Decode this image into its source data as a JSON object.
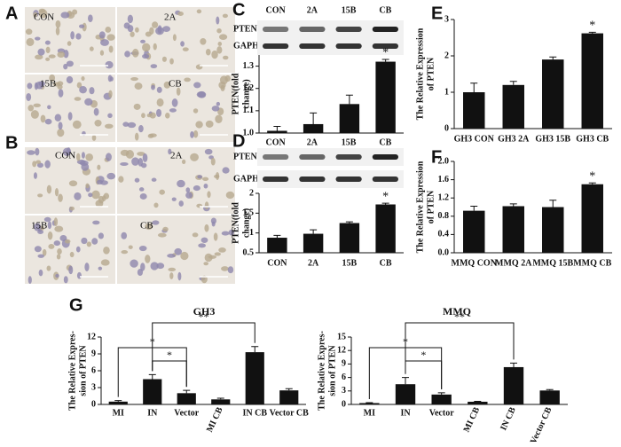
{
  "panels": [
    {
      "letter": "A",
      "labels": [
        "CON",
        "2A",
        "15B",
        "CB"
      ]
    },
    {
      "letter": "B",
      "labels": [
        "CON",
        "2A",
        "15B",
        "CB"
      ]
    },
    {
      "letter": "C"
    },
    {
      "letter": "D"
    },
    {
      "letter": "E"
    },
    {
      "letter": "F"
    },
    {
      "letter": "G"
    }
  ],
  "blots": [
    {
      "lanes": [
        "CON",
        "2A",
        "15B",
        "CB"
      ],
      "rows": [
        "PTEN",
        "GAPHD"
      ]
    },
    {
      "lanes": [
        "CON",
        "2A",
        "15B",
        "CB"
      ],
      "rows": [
        "PTEN",
        "GAPHD"
      ]
    }
  ],
  "chart_data": [
    {
      "type": "bar",
      "ylabel_lines": [
        "PTEN(fold",
        "change)"
      ],
      "categories": [
        "CON",
        "2A",
        "15B",
        "CB"
      ],
      "values": [
        1.01,
        1.04,
        1.13,
        1.32
      ],
      "errors": [
        0.02,
        0.05,
        0.04,
        0.01
      ],
      "color": "#111111",
      "ylim": [
        1.0,
        1.35
      ],
      "yticks": [
        {
          "value": 1.0,
          "label": "1.0"
        },
        1.1,
        1.2,
        1.3
      ],
      "annotations": [
        {
          "label": "*",
          "category": "CB"
        }
      ]
    },
    {
      "type": "bar",
      "ylabel_lines": [
        "PTEN(fold",
        "change)"
      ],
      "categories": [
        "CON",
        "2A",
        "15B",
        "CB"
      ],
      "values": [
        0.88,
        0.98,
        1.25,
        1.72
      ],
      "errors": [
        0.06,
        0.1,
        0.03,
        0.03
      ],
      "color": "#111111",
      "ylim": [
        0.5,
        2
      ],
      "yticks": [
        0.5,
        1,
        1.5,
        2
      ],
      "annotations": [
        {
          "label": "*",
          "category": "CB"
        }
      ]
    },
    {
      "type": "bar",
      "ylabel_lines": [
        "The Relative Expression",
        "of PTEN"
      ],
      "categories": [
        "GH3 CON",
        "GH3 2A",
        "GH3 15B",
        "GH3 CB"
      ],
      "values": [
        1.0,
        1.2,
        1.9,
        2.62
      ],
      "errors": [
        0.25,
        0.1,
        0.07,
        0.03
      ],
      "color": "#111111",
      "ylim": [
        0,
        3
      ],
      "yticks": [
        0,
        1,
        2,
        3
      ],
      "annotations": [
        {
          "label": "*",
          "category": "GH3 CB"
        }
      ]
    },
    {
      "type": "bar",
      "ylabel_lines": [
        "The Relative Expression",
        "of PTEN"
      ],
      "categories": [
        "MMQ CON",
        "MMQ 2A",
        "MMQ 15B",
        "MMQ CB"
      ],
      "values": [
        0.92,
        1.02,
        1.0,
        1.5
      ],
      "errors": [
        0.1,
        0.05,
        0.15,
        0.03
      ],
      "color": "#111111",
      "ylim": [
        0,
        2
      ],
      "yticks": [
        {
          "value": 0,
          "label": "0.0"
        },
        0.4,
        0.8,
        1.2,
        1.6,
        {
          "value": 2,
          "label": "2.0"
        }
      ],
      "annotations": [
        {
          "label": "*",
          "category": "MMQ CB"
        }
      ]
    },
    {
      "type": "bar",
      "title": "GH3",
      "ylabel_lines": [
        "The Relative Expres-",
        "sion of PTEN"
      ],
      "categories": [
        "MI",
        "IN",
        "Vector",
        "MI CB",
        "IN CB",
        "Vector CB"
      ],
      "values": [
        0.5,
        4.5,
        2.0,
        0.9,
        9.3,
        2.5
      ],
      "errors": [
        0.2,
        0.8,
        0.5,
        0.2,
        1.0,
        0.3
      ],
      "color": "#111111",
      "ylim": [
        0,
        12
      ],
      "yticks": [
        0,
        3,
        6,
        9,
        12
      ],
      "brackets": [
        {
          "label": "*",
          "from": "MI",
          "to": "Vector"
        },
        {
          "label": "*",
          "from": "IN",
          "to": "Vector"
        },
        {
          "label": "**",
          "from": "IN",
          "to": "IN CB"
        }
      ]
    },
    {
      "type": "bar",
      "title": "MMQ",
      "ylabel_lines": [
        "The Relative Expres-",
        "sion of PTEN"
      ],
      "categories": [
        "MI",
        "IN",
        "Vector",
        "MI CB",
        "IN CB",
        "Vector CB"
      ],
      "values": [
        0.3,
        4.5,
        2.2,
        0.6,
        8.3,
        3.1
      ],
      "errors": [
        0.1,
        1.5,
        0.4,
        0.1,
        0.9,
        0.2
      ],
      "color": "#111111",
      "ylim": [
        0,
        15
      ],
      "yticks": [
        0,
        3,
        6,
        9,
        12,
        15
      ],
      "brackets": [
        {
          "label": "*",
          "from": "MI",
          "to": "Vector"
        },
        {
          "label": "*",
          "from": "IN",
          "to": "Vector"
        },
        {
          "label": "**",
          "from": "IN",
          "to": "IN CB"
        }
      ]
    }
  ]
}
